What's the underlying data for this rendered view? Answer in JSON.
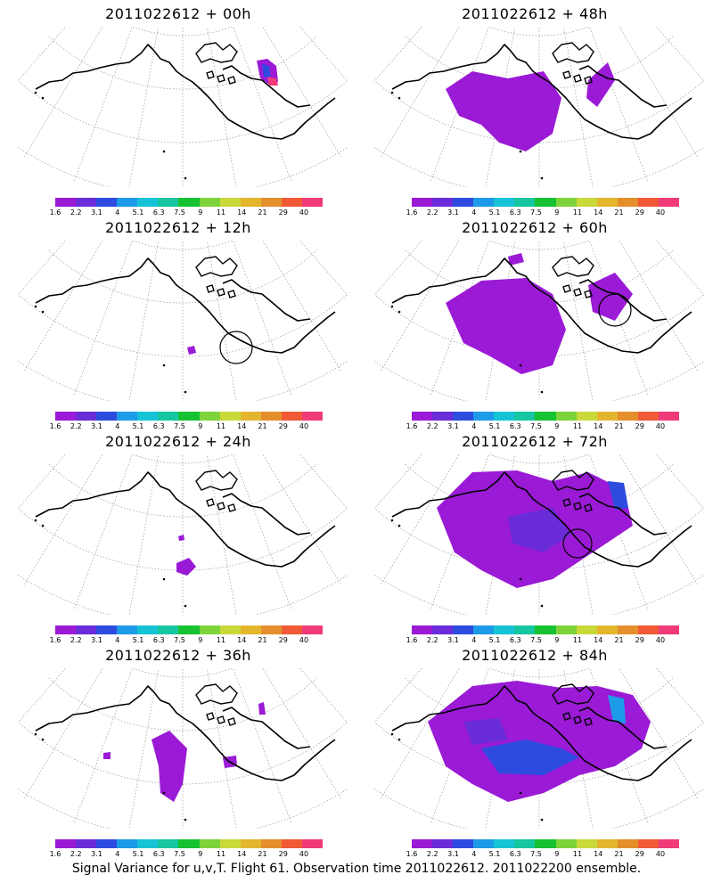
{
  "colorbar": {
    "labels": [
      "1.6",
      "2.2",
      "3.1",
      "4",
      "5.1",
      "6.3",
      "7.5",
      "9",
      "11",
      "14",
      "21",
      "29",
      "40"
    ],
    "colors": [
      "#9a1ad6",
      "#6a2bd8",
      "#2e4be0",
      "#1d9be8",
      "#16c3d6",
      "#15c6a0",
      "#16c232",
      "#7ed33a",
      "#c9d93a",
      "#e3b62e",
      "#e48f2b",
      "#f05a36",
      "#f03a7a"
    ]
  },
  "panels": [
    {
      "title": "2011022612 + 00h"
    },
    {
      "title": "2011022612 + 48h"
    },
    {
      "title": "2011022612 + 12h"
    },
    {
      "title": "2011022612 + 60h"
    },
    {
      "title": "2011022612 + 24h"
    },
    {
      "title": "2011022612 + 72h"
    },
    {
      "title": "2011022612 + 36h"
    },
    {
      "title": "2011022612 + 84h"
    }
  ],
  "caption": "Signal Variance for u,v,T. Flight 61. Observation time 2011022612. 2011022200 ensemble."
}
